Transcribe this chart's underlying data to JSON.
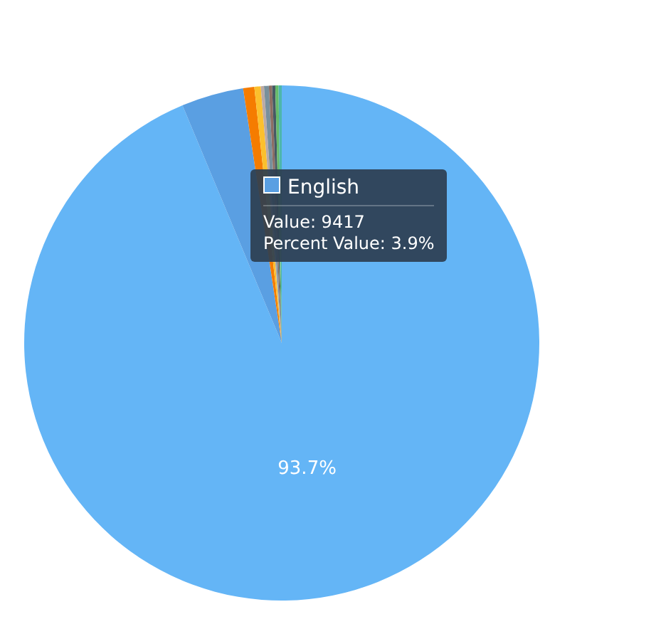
{
  "chart_data": {
    "type": "pie",
    "categories": [
      null,
      "English",
      null,
      null,
      null,
      null,
      null,
      null,
      null,
      null
    ],
    "values": [
      93.7,
      3.9,
      0.7,
      0.4,
      0.2,
      0.3,
      0.2,
      0.2,
      0.2,
      0.2
    ],
    "colors": [
      "#64b5f6",
      "#5a9fe2",
      "#f57c00",
      "#fbc02d",
      "#bcaaa4",
      "#78909c",
      "#8d6e63",
      "#455a64",
      "#66bb6a",
      "#4db6ac"
    ],
    "value_labels": [
      "93.7%",
      null,
      null,
      null,
      null,
      null,
      null,
      null,
      null,
      null
    ],
    "annotations": [
      "Value: 9417",
      "Percent Value: 3.9%"
    ],
    "legend": "top"
  }
}
